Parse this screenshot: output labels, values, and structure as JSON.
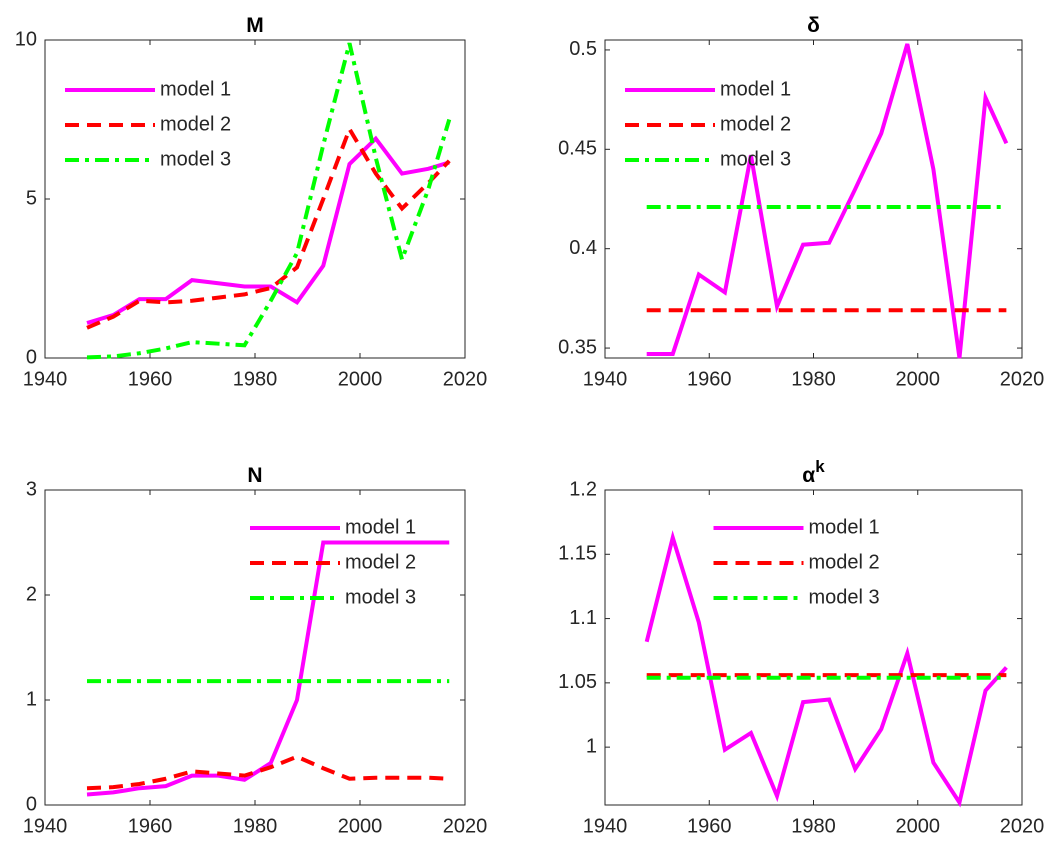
{
  "chart_data": [
    {
      "type": "line",
      "title": "M",
      "legend": "upper-left",
      "x": [
        1948,
        1953,
        1958,
        1963,
        1968,
        1973,
        1978,
        1983,
        1988,
        1993,
        1998,
        2003,
        2008,
        2013,
        2017
      ],
      "xlim": [
        1940,
        2020
      ],
      "xticks": [
        1940,
        1960,
        1980,
        2000,
        2020
      ],
      "ylim": [
        0,
        10
      ],
      "yticks": [
        0,
        5,
        10
      ],
      "series": [
        {
          "name": "model 1",
          "color": "#ff00ff",
          "dash": "solid",
          "values": [
            1.1,
            1.35,
            1.85,
            1.85,
            2.45,
            2.35,
            2.25,
            2.25,
            1.75,
            2.9,
            6.1,
            6.9,
            5.8,
            5.95,
            6.15
          ]
        },
        {
          "name": "model 2",
          "color": "#ff0000",
          "dash": "dashed",
          "values": [
            0.95,
            1.3,
            1.8,
            1.75,
            1.8,
            1.9,
            2.0,
            2.2,
            2.85,
            5.0,
            7.2,
            5.8,
            4.7,
            5.5,
            6.2
          ]
        },
        {
          "name": "model 3",
          "color": "#00ff00",
          "dash": "dashdot",
          "values": [
            0.02,
            0.05,
            0.15,
            0.3,
            0.5,
            0.45,
            0.4,
            1.8,
            3.3,
            6.7,
            9.9,
            6.3,
            3.1,
            5.3,
            7.5
          ]
        }
      ]
    },
    {
      "type": "line",
      "title": "δ",
      "legend": "upper-left",
      "x": [
        1948,
        1953,
        1958,
        1963,
        1968,
        1973,
        1978,
        1983,
        1988,
        1993,
        1998,
        2003,
        2008,
        2013,
        2017
      ],
      "xlim": [
        1940,
        2020
      ],
      "xticks": [
        1940,
        1960,
        1980,
        2000,
        2020
      ],
      "ylim": [
        0.345,
        0.505
      ],
      "yticks": [
        0.35,
        0.4,
        0.45,
        0.5
      ],
      "series": [
        {
          "name": "model 1",
          "color": "#ff00ff",
          "dash": "solid",
          "values": [
            0.347,
            0.347,
            0.387,
            0.378,
            0.447,
            0.371,
            0.402,
            0.403,
            0.43,
            0.458,
            0.503,
            0.44,
            0.345,
            0.476,
            0.453
          ]
        },
        {
          "name": "model 2",
          "color": "#ff0000",
          "dash": "dashed",
          "values": [
            0.369,
            0.369,
            0.369,
            0.369,
            0.369,
            0.369,
            0.369,
            0.369,
            0.369,
            0.369,
            0.369,
            0.369,
            0.369,
            0.369,
            0.369
          ]
        },
        {
          "name": "model 3",
          "color": "#00ff00",
          "dash": "dashdot",
          "values": [
            0.421,
            0.421,
            0.421,
            0.421,
            0.421,
            0.421,
            0.421,
            0.421,
            0.421,
            0.421,
            0.421,
            0.421,
            0.421,
            0.421,
            0.421
          ]
        }
      ]
    },
    {
      "type": "line",
      "title": "N",
      "legend": "upper-right",
      "x": [
        1948,
        1953,
        1958,
        1963,
        1968,
        1973,
        1978,
        1983,
        1988,
        1993,
        1998,
        2003,
        2008,
        2013,
        2017
      ],
      "xlim": [
        1940,
        2020
      ],
      "xticks": [
        1940,
        1960,
        1980,
        2000,
        2020
      ],
      "ylim": [
        0,
        3
      ],
      "yticks": [
        0,
        1,
        2,
        3
      ],
      "series": [
        {
          "name": "model 1",
          "color": "#ff00ff",
          "dash": "solid",
          "values": [
            0.1,
            0.12,
            0.16,
            0.18,
            0.28,
            0.28,
            0.24,
            0.4,
            1.0,
            2.5,
            2.5,
            2.5,
            2.5,
            2.5,
            2.5
          ]
        },
        {
          "name": "model 2",
          "color": "#ff0000",
          "dash": "dashed",
          "values": [
            0.16,
            0.17,
            0.2,
            0.25,
            0.32,
            0.3,
            0.28,
            0.36,
            0.46,
            0.35,
            0.25,
            0.26,
            0.26,
            0.26,
            0.25
          ]
        },
        {
          "name": "model 3",
          "color": "#00ff00",
          "dash": "dashdot",
          "values": [
            1.18,
            1.18,
            1.18,
            1.18,
            1.18,
            1.18,
            1.18,
            1.18,
            1.18,
            1.18,
            1.18,
            1.18,
            1.18,
            1.18,
            1.18
          ]
        }
      ]
    },
    {
      "type": "line",
      "title": "α",
      "title_superscript": "k",
      "legend": "upper-center",
      "x": [
        1948,
        1953,
        1958,
        1963,
        1968,
        1973,
        1978,
        1983,
        1988,
        1993,
        1998,
        2003,
        2008,
        2013,
        2017
      ],
      "xlim": [
        1940,
        2020
      ],
      "xticks": [
        1940,
        1960,
        1980,
        2000,
        2020
      ],
      "ylim": [
        0.955,
        1.2
      ],
      "yticks": [
        1,
        1.05,
        1.1,
        1.15,
        1.2
      ],
      "series": [
        {
          "name": "model 1",
          "color": "#ff00ff",
          "dash": "solid",
          "values": [
            1.082,
            1.163,
            1.097,
            0.998,
            1.011,
            0.962,
            1.035,
            1.037,
            0.983,
            1.014,
            1.073,
            0.988,
            0.957,
            1.044,
            1.062
          ]
        },
        {
          "name": "model 2",
          "color": "#ff0000",
          "dash": "dashed",
          "values": [
            1.056,
            1.056,
            1.056,
            1.056,
            1.056,
            1.056,
            1.056,
            1.056,
            1.056,
            1.056,
            1.056,
            1.056,
            1.056,
            1.056,
            1.056
          ]
        },
        {
          "name": "model 3",
          "color": "#00ff00",
          "dash": "dashdot",
          "values": [
            1.054,
            1.054,
            1.054,
            1.054,
            1.054,
            1.054,
            1.054,
            1.054,
            1.054,
            1.054,
            1.054,
            1.054,
            1.054,
            1.054,
            1.054
          ]
        }
      ]
    }
  ]
}
